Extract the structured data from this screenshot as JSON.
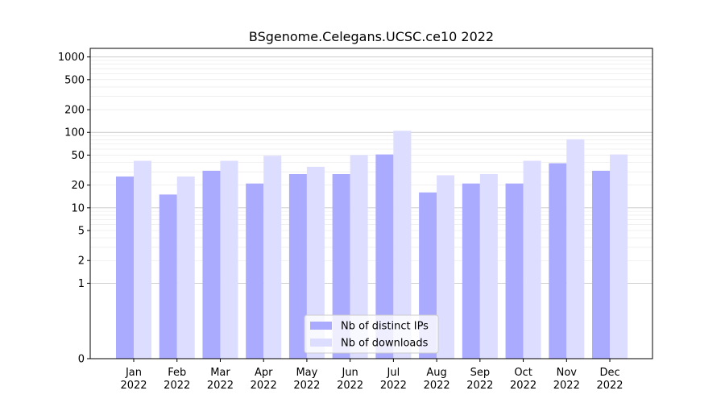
{
  "chart_data": {
    "type": "bar",
    "title": "BSgenome.Celegans.UCSC.ce10 2022",
    "xlabel": "",
    "ylabel": "",
    "yscale": "symlog",
    "categories": [
      "Jan\n2022",
      "Feb\n2022",
      "Mar\n2022",
      "Apr\n2022",
      "May\n2022",
      "Jun\n2022",
      "Jul\n2022",
      "Aug\n2022",
      "Sep\n2022",
      "Oct\n2022",
      "Nov\n2022",
      "Dec\n2022"
    ],
    "yticks": [
      0,
      1,
      2,
      5,
      10,
      20,
      50,
      100,
      200,
      500,
      1000
    ],
    "ytick_labels": [
      "0",
      "1",
      "2",
      "5",
      "10",
      "20",
      "50",
      "100",
      "200",
      "500",
      "1000"
    ],
    "ylim": [
      0,
      1300
    ],
    "grid": "horizontal",
    "legend_position": "lower-center",
    "series": [
      {
        "name": "Nb of distinct IPs",
        "color": "#aaaaff",
        "values": [
          26,
          15,
          31,
          21,
          28,
          28,
          51,
          16,
          21,
          21,
          39,
          31
        ]
      },
      {
        "name": "Nb of downloads",
        "color": "#ddddff",
        "values": [
          42,
          26,
          42,
          49,
          35,
          50,
          105,
          27,
          28,
          42,
          81,
          51
        ]
      }
    ]
  }
}
